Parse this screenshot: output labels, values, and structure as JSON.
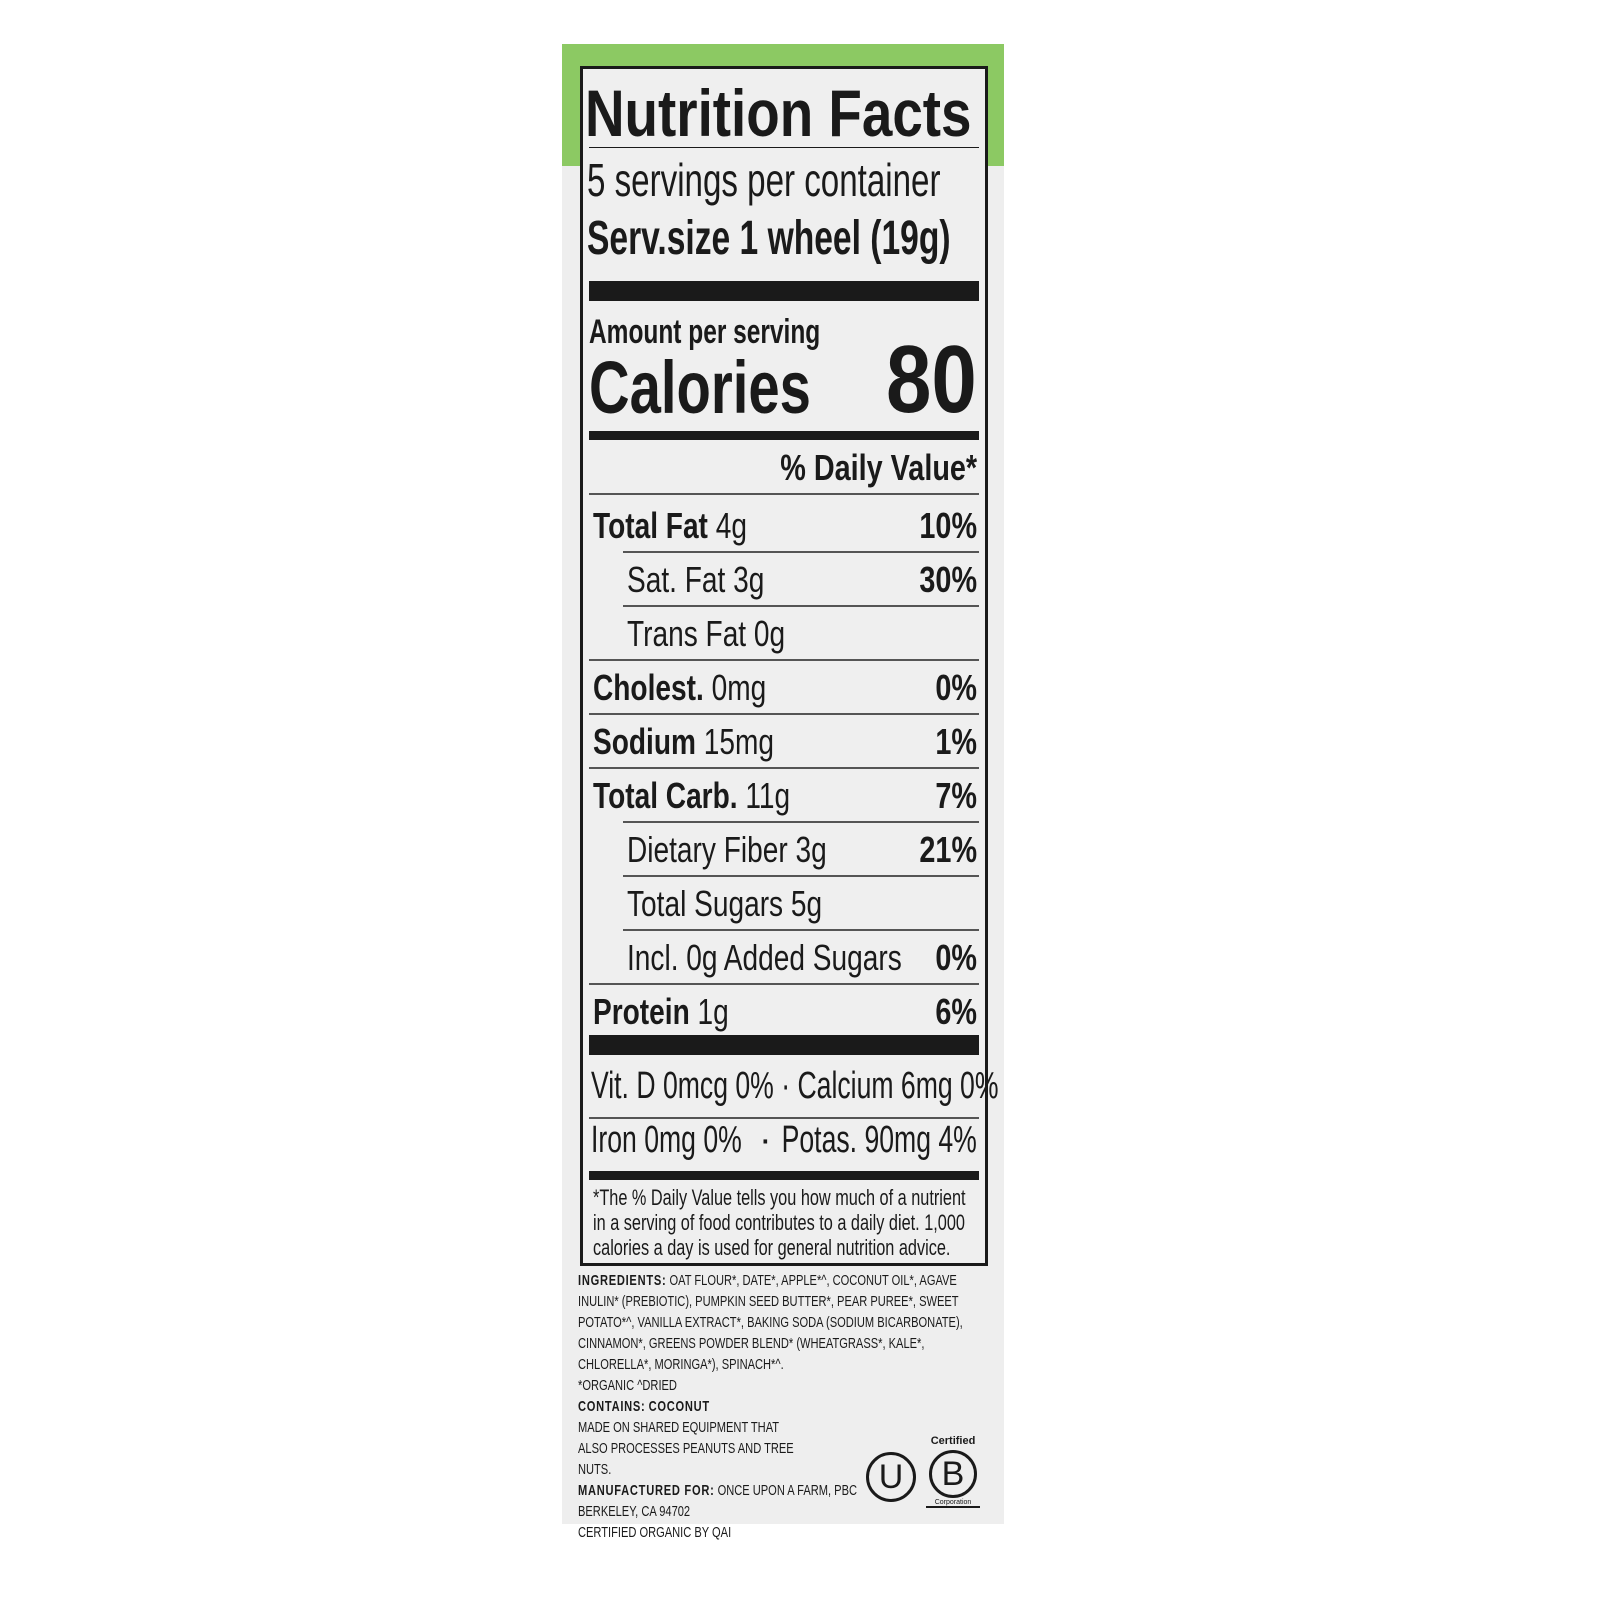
{
  "label": {
    "title": "Nutrition Facts",
    "servings": "5 servings per container",
    "serving_size": "Serv.size 1 wheel (19g)",
    "amount_per_serving": "Amount per serving",
    "calories_label": "Calories",
    "calories_value": "80",
    "daily_value_header": "% Daily Value*",
    "nutrients": [
      {
        "name": "Total Fat",
        "amount": "4g",
        "dv": "10%",
        "bold": true,
        "indent": false
      },
      {
        "name": "Sat. Fat",
        "amount": "3g",
        "dv": "30%",
        "bold": false,
        "indent": true
      },
      {
        "name": "Trans Fat",
        "amount": "0g",
        "dv": "",
        "bold": false,
        "indent": true
      },
      {
        "name": "Cholest.",
        "amount": "0mg",
        "dv": "0%",
        "bold": true,
        "indent": false
      },
      {
        "name": "Sodium",
        "amount": "15mg",
        "dv": "1%",
        "bold": true,
        "indent": false
      },
      {
        "name": "Total Carb.",
        "amount": "11g",
        "dv": "7%",
        "bold": true,
        "indent": false
      },
      {
        "name": "Dietary Fiber",
        "amount": "3g",
        "dv": "21%",
        "bold": false,
        "indent": true
      },
      {
        "name": "Total Sugars",
        "amount": "5g",
        "dv": "",
        "bold": false,
        "indent": true
      },
      {
        "name": "Incl. 0g Added Sugars",
        "amount": "",
        "dv": "0%",
        "bold": false,
        "indent": true
      },
      {
        "name": "Protein",
        "amount": "1g",
        "dv": "6%",
        "bold": true,
        "indent": false
      }
    ],
    "vitamins_line1": "Vit. D 0mcg 0% · Calcium 6mg 0%",
    "vitamins_line2_left": "Iron 0mg 0%",
    "vitamins_line2_sep": "·",
    "vitamins_line2_right": "Potas. 90mg 4%",
    "footnote": "*The % Daily Value tells you how much of a nutrient in a serving of food contributes to a daily diet. 1,000 calories a day is used for general nutrition advice."
  },
  "package": {
    "ingredients_label": "INGREDIENTS:",
    "ingredients": "OAT FLOUR*, DATE*, APPLE*^, COCONUT OIL*, AGAVE INULIN* (PREBIOTIC), PUMPKIN SEED BUTTER*, PEAR PUREE*, SWEET POTATO*^, VANILLA EXTRACT*, BAKING SODA (SODIUM BICARBONATE), CINNAMON*, GREENS POWDER BLEND* (WHEATGRASS*, KALE*, CHLORELLA*, MORINGA*), SPINACH*^.",
    "legend": "*ORGANIC ^DRIED",
    "contains_label": "CONTAINS:",
    "contains": "COCONUT",
    "allergen_note": "MADE ON SHARED EQUIPMENT THAT ALSO PROCESSES PEANUTS AND TREE NUTS.",
    "manufactured_label": "MANUFACTURED FOR:",
    "manufacturer": "ONCE UPON A FARM, PBC",
    "address": "BERKELEY, CA 94702",
    "certifier": "CERTIFIED ORGANIC BY QAI",
    "kosher_logo": "U",
    "bcorp_top": "Certified",
    "bcorp_letter": "B",
    "bcorp_bottom": "Corporation"
  },
  "colors": {
    "green": "#8cc963",
    "ink": "#1a1a1a",
    "paper": "#eeeeee"
  }
}
